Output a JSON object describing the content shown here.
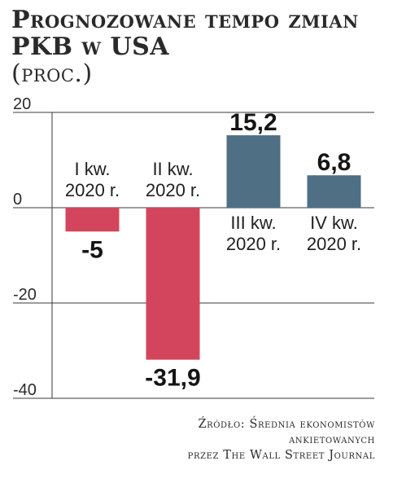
{
  "chart_data": {
    "type": "bar",
    "title": "Prognozowane tempo zmian PKB w USA",
    "subtitle": "(proc.)",
    "categories": [
      [
        "I kw.",
        "2020 r."
      ],
      [
        "II kw.",
        "2020 r."
      ],
      [
        "III kw.",
        "2020 r."
      ],
      [
        "IV kw.",
        "2020 r."
      ]
    ],
    "values": [
      -5,
      -31.9,
      15.2,
      6.8
    ],
    "value_labels": [
      "-5",
      "-31,9",
      "15,2",
      "6,8"
    ],
    "ylim": [
      -40,
      20
    ],
    "yticks": [
      20,
      0,
      -20,
      -40
    ],
    "grid": true,
    "colors": {
      "negative": "#d3455c",
      "positive": "#4f6f85",
      "grid": "#3a3a3a"
    },
    "source": [
      "Źródło: Średnia ekonomistów",
      "ankietowanych",
      "przez The Wall Street Journal"
    ]
  }
}
